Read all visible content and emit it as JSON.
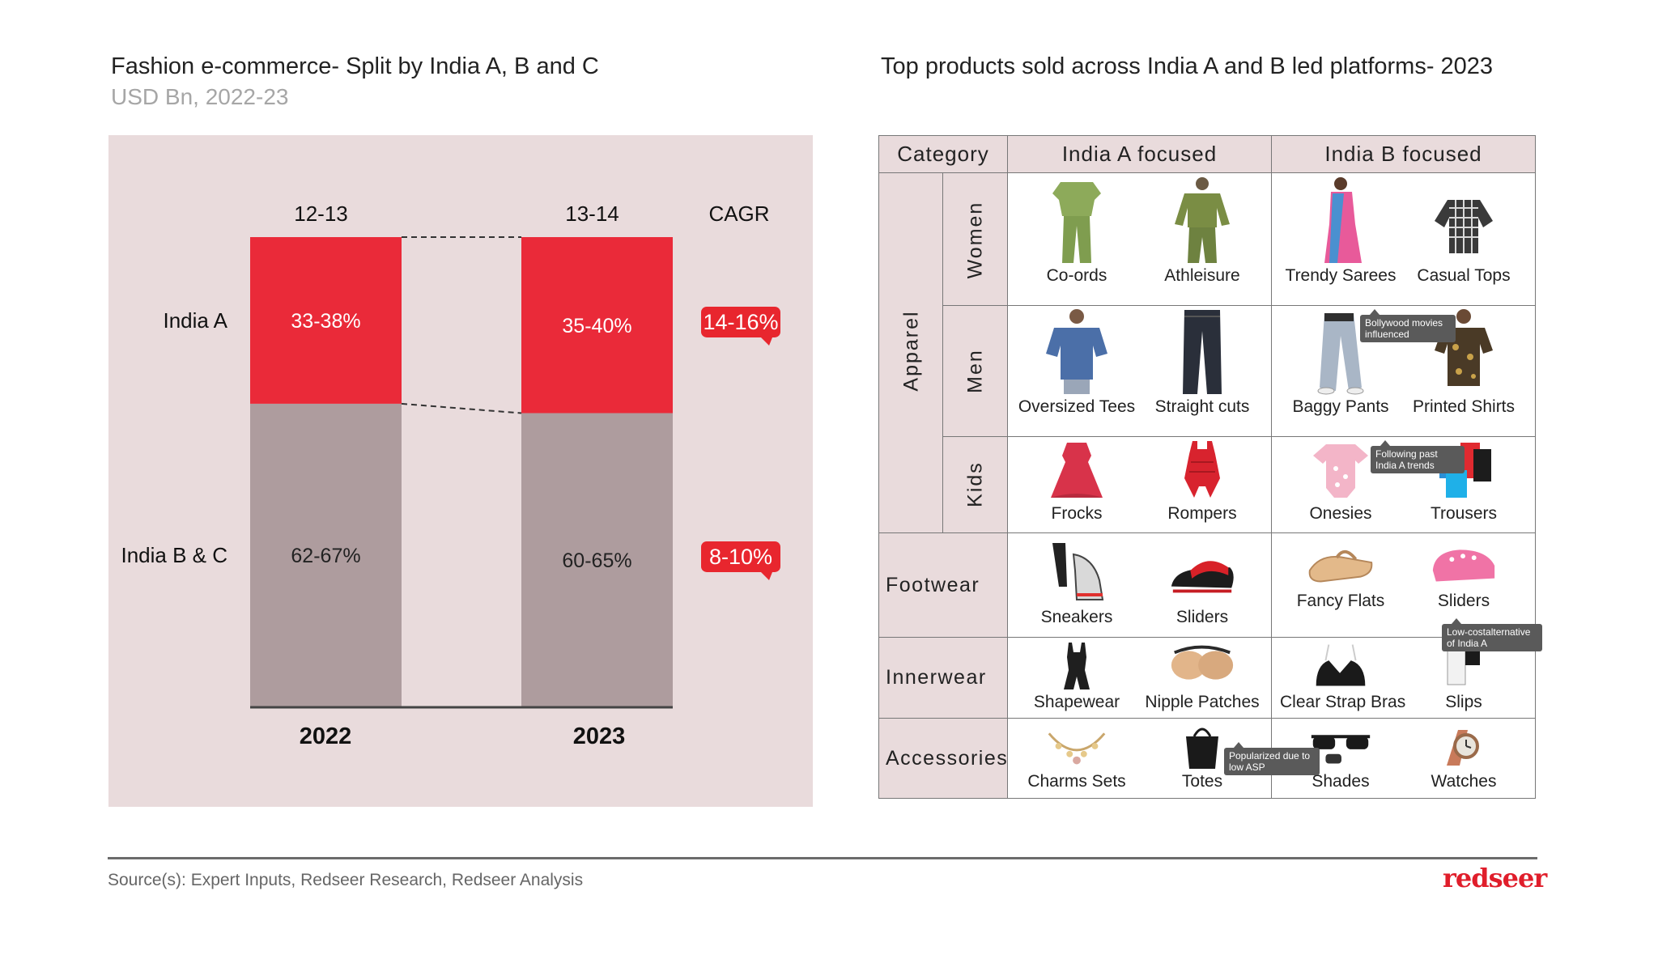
{
  "left": {
    "title": "Fashion e-commerce- Split by India A, B and C",
    "subtitle": "USD Bn, 2022-23"
  },
  "right": {
    "title": "Top products sold across India A and B led platforms- 2023"
  },
  "chart_data": {
    "type": "stacked-bar",
    "categories": [
      "2022",
      "2023"
    ],
    "totals": [
      "12-13",
      "13-14"
    ],
    "total_header": "CAGR",
    "series": [
      {
        "name": "India A",
        "labels": [
          "33-38%",
          "35-40%"
        ],
        "values": [
          35.5,
          37.5
        ],
        "cagr": "14-16%",
        "color": "#ea2a39"
      },
      {
        "name": "India B & C",
        "labels": [
          "62-67%",
          "60-65%"
        ],
        "values": [
          64.5,
          62.5
        ],
        "cagr": "8-10%",
        "color": "#ae9c9e"
      }
    ],
    "ylim": [
      0,
      100
    ],
    "cagr_color": "#e8262e"
  },
  "table": {
    "headers": {
      "category": "Category",
      "a": "India A focused",
      "b": "India B focused"
    },
    "groups": {
      "apparel": "Apparel",
      "women": "Women",
      "men": "Men",
      "kids": "Kids",
      "footwear": "Footwear",
      "innerwear": "Innerwear",
      "accessories": "Accessories"
    },
    "rows": {
      "women": [
        "Co-ords",
        "Athleisure",
        "Trendy Sarees",
        "Casual Tops"
      ],
      "men": [
        "Oversized Tees",
        "Straight cuts",
        "Baggy Pants",
        "Printed Shirts"
      ],
      "kids": [
        "Frocks",
        "Rompers",
        "Onesies",
        "Trousers"
      ],
      "footwear": [
        "Sneakers",
        "Sliders",
        "Fancy Flats",
        "Sliders"
      ],
      "innerwear": [
        "Shapewear",
        "Nipple Patches",
        "Clear Strap Bras",
        "Slips"
      ],
      "accessories": [
        "Charms Sets",
        "Totes",
        "Shades",
        "Watches"
      ]
    },
    "callouts": {
      "bollywood": "Bollywood movies influenced",
      "past_trends": "Following past India A trends",
      "low_cost": "Low-costalternative of India A",
      "low_asp": "Popularized due to low ASP"
    }
  },
  "footer": {
    "source": "Source(s): Expert Inputs, Redseer Research, Redseer Analysis",
    "logo": "redseer"
  }
}
